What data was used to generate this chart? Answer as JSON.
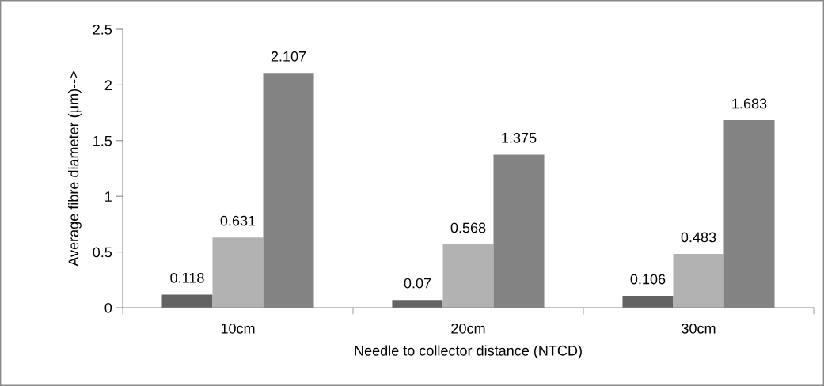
{
  "chart_data": {
    "type": "bar",
    "xlabel": "Needle to collector distance (NTCD)",
    "ylabel": "Average fibre diameter (μm)-->",
    "categories": [
      "10cm",
      "20cm",
      "30cm"
    ],
    "series": [
      {
        "color": "#636363",
        "values": [
          0.118,
          0.07,
          0.106
        ]
      },
      {
        "color": "#b2b2b2",
        "values": [
          0.631,
          0.568,
          0.483
        ]
      },
      {
        "color": "#838383",
        "values": [
          2.107,
          1.375,
          1.683
        ]
      }
    ],
    "ylim": [
      0,
      2.5
    ],
    "yticks": [
      0,
      0.5,
      1,
      1.5,
      2,
      2.5
    ],
    "grid": false,
    "legend": false,
    "data_labels": true
  }
}
